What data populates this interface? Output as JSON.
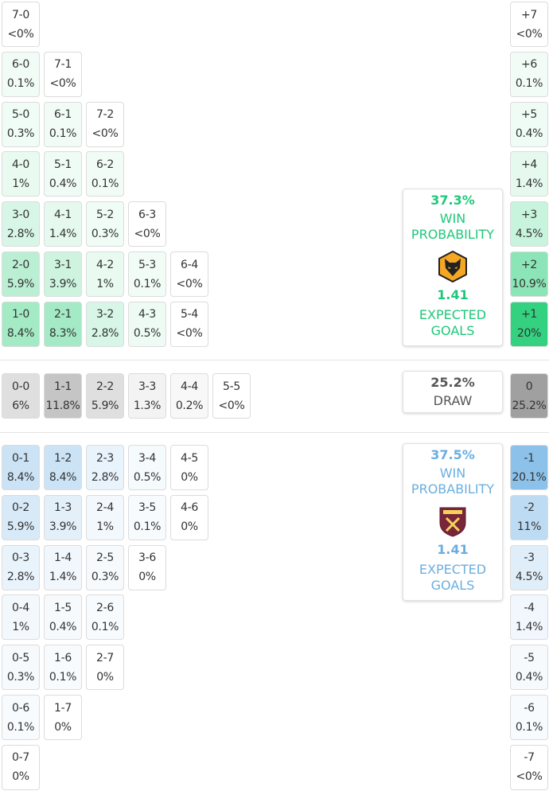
{
  "home": {
    "grid": [
      [
        {
          "score": "7-0",
          "prob": "<0%"
        }
      ],
      [
        {
          "score": "6-0",
          "prob": "0.1%"
        },
        {
          "score": "7-1",
          "prob": "<0%"
        }
      ],
      [
        {
          "score": "5-0",
          "prob": "0.3%"
        },
        {
          "score": "6-1",
          "prob": "0.1%"
        },
        {
          "score": "7-2",
          "prob": "<0%"
        }
      ],
      [
        {
          "score": "4-0",
          "prob": "1%"
        },
        {
          "score": "5-1",
          "prob": "0.4%"
        },
        {
          "score": "6-2",
          "prob": "0.1%"
        }
      ],
      [
        {
          "score": "3-0",
          "prob": "2.8%"
        },
        {
          "score": "4-1",
          "prob": "1.4%"
        },
        {
          "score": "5-2",
          "prob": "0.3%"
        },
        {
          "score": "6-3",
          "prob": "<0%"
        }
      ],
      [
        {
          "score": "2-0",
          "prob": "5.9%"
        },
        {
          "score": "3-1",
          "prob": "3.9%"
        },
        {
          "score": "4-2",
          "prob": "1%"
        },
        {
          "score": "5-3",
          "prob": "0.1%"
        },
        {
          "score": "6-4",
          "prob": "<0%"
        }
      ],
      [
        {
          "score": "1-0",
          "prob": "8.4%"
        },
        {
          "score": "2-1",
          "prob": "8.3%"
        },
        {
          "score": "3-2",
          "prob": "2.8%"
        },
        {
          "score": "4-3",
          "prob": "0.5%"
        },
        {
          "score": "5-4",
          "prob": "<0%"
        }
      ]
    ],
    "margins": [
      {
        "margin": "+7",
        "prob": "<0%"
      },
      {
        "margin": "+6",
        "prob": "0.1%"
      },
      {
        "margin": "+5",
        "prob": "0.4%"
      },
      {
        "margin": "+4",
        "prob": "1.4%"
      },
      {
        "margin": "+3",
        "prob": "4.5%"
      },
      {
        "margin": "+2",
        "prob": "10.9%"
      },
      {
        "margin": "+1",
        "prob": "20%"
      }
    ],
    "summary": {
      "win_probability": "37.3%",
      "win_label": "WIN PROBABILITY",
      "expected_goals": "1.41",
      "xg_label": "EXPECTED GOALS"
    }
  },
  "draw": {
    "grid": [
      {
        "score": "0-0",
        "prob": "6%"
      },
      {
        "score": "1-1",
        "prob": "11.8%"
      },
      {
        "score": "2-2",
        "prob": "5.9%"
      },
      {
        "score": "3-3",
        "prob": "1.3%"
      },
      {
        "score": "4-4",
        "prob": "0.2%"
      },
      {
        "score": "5-5",
        "prob": "<0%"
      }
    ],
    "margin": {
      "margin": "0",
      "prob": "25.2%"
    },
    "summary": {
      "probability": "25.2%",
      "label": "DRAW"
    }
  },
  "away": {
    "grid": [
      [
        {
          "score": "0-1",
          "prob": "8.4%"
        },
        {
          "score": "1-2",
          "prob": "8.4%"
        },
        {
          "score": "2-3",
          "prob": "2.8%"
        },
        {
          "score": "3-4",
          "prob": "0.5%"
        },
        {
          "score": "4-5",
          "prob": "0%"
        }
      ],
      [
        {
          "score": "0-2",
          "prob": "5.9%"
        },
        {
          "score": "1-3",
          "prob": "3.9%"
        },
        {
          "score": "2-4",
          "prob": "1%"
        },
        {
          "score": "3-5",
          "prob": "0.1%"
        },
        {
          "score": "4-6",
          "prob": "0%"
        }
      ],
      [
        {
          "score": "0-3",
          "prob": "2.8%"
        },
        {
          "score": "1-4",
          "prob": "1.4%"
        },
        {
          "score": "2-5",
          "prob": "0.3%"
        },
        {
          "score": "3-6",
          "prob": "0%"
        }
      ],
      [
        {
          "score": "0-4",
          "prob": "1%"
        },
        {
          "score": "1-5",
          "prob": "0.4%"
        },
        {
          "score": "2-6",
          "prob": "0.1%"
        }
      ],
      [
        {
          "score": "0-5",
          "prob": "0.3%"
        },
        {
          "score": "1-6",
          "prob": "0.1%"
        },
        {
          "score": "2-7",
          "prob": "0%"
        }
      ],
      [
        {
          "score": "0-6",
          "prob": "0.1%"
        },
        {
          "score": "1-7",
          "prob": "0%"
        }
      ],
      [
        {
          "score": "0-7",
          "prob": "0%"
        }
      ]
    ],
    "margins": [
      {
        "margin": "-1",
        "prob": "20.1%"
      },
      {
        "margin": "-2",
        "prob": "11%"
      },
      {
        "margin": "-3",
        "prob": "4.5%"
      },
      {
        "margin": "-4",
        "prob": "1.4%"
      },
      {
        "margin": "-5",
        "prob": "0.4%"
      },
      {
        "margin": "-6",
        "prob": "0.1%"
      },
      {
        "margin": "-7",
        "prob": "<0%"
      }
    ],
    "summary": {
      "win_probability": "37.5%",
      "win_label": "WIN PROBABILITY",
      "expected_goals": "1.41",
      "xg_label": "EXPECTED GOALS"
    }
  }
}
